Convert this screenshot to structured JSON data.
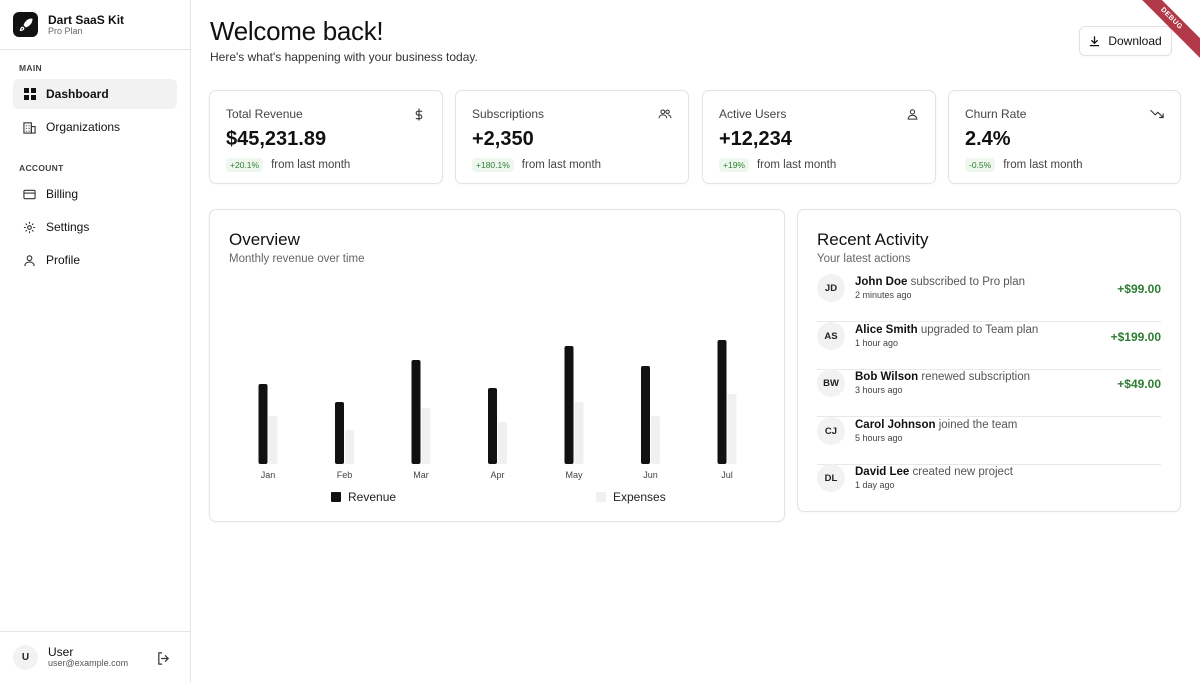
{
  "brand": {
    "name": "Dart SaaS Kit",
    "plan": "Pro Plan"
  },
  "sidebar": {
    "sections": [
      {
        "label": "MAIN",
        "items": [
          {
            "label": "Dashboard",
            "icon": "dashboard-icon",
            "active": true
          },
          {
            "label": "Organizations",
            "icon": "building-icon",
            "active": false
          }
        ]
      },
      {
        "label": "ACCOUNT",
        "items": [
          {
            "label": "Billing",
            "icon": "credit-card-icon",
            "active": false
          },
          {
            "label": "Settings",
            "icon": "gear-icon",
            "active": false
          },
          {
            "label": "Profile",
            "icon": "user-icon",
            "active": false
          }
        ]
      }
    ]
  },
  "user": {
    "initial": "U",
    "name": "User",
    "email": "user@example.com"
  },
  "header": {
    "title": "Welcome back!",
    "subtitle": "Here's what's happening with your business today.",
    "download_label": "Download"
  },
  "debug_banner": "DEBUG",
  "stats": [
    {
      "title": "Total Revenue",
      "value": "$45,231.89",
      "change": "+20.1%",
      "from": "from last month",
      "icon": "dollar-icon"
    },
    {
      "title": "Subscriptions",
      "value": "+2,350",
      "change": "+180.1%",
      "from": "from last month",
      "icon": "users-icon"
    },
    {
      "title": "Active Users",
      "value": "+12,234",
      "change": "+19%",
      "from": "from last month",
      "icon": "user-icon"
    },
    {
      "title": "Churn Rate",
      "value": "2.4%",
      "change": "-0.5%",
      "from": "from last month",
      "icon": "trending-down-icon"
    }
  ],
  "overview": {
    "title": "Overview",
    "subtitle": "Monthly revenue over time"
  },
  "chart_data": {
    "type": "bar",
    "categories": [
      "Jan",
      "Feb",
      "Mar",
      "Apr",
      "May",
      "Jun",
      "Jul"
    ],
    "series": [
      {
        "name": "Revenue",
        "values": [
          4000,
          3100,
          5200,
          3800,
          5900,
          4900,
          6200
        ],
        "color": "#111111"
      },
      {
        "name": "Expenses",
        "values": [
          2400,
          1700,
          2800,
          2100,
          3100,
          2400,
          3500
        ],
        "color": "#f0f0f0"
      }
    ],
    "ylim": [
      0,
      7000
    ],
    "grid": false,
    "legend": "bottom"
  },
  "activity": {
    "title": "Recent Activity",
    "subtitle": "Your latest actions",
    "items": [
      {
        "initials": "JD",
        "name": "John Doe",
        "action": "subscribed to Pro plan",
        "time": "2 minutes ago",
        "amount": "+$99.00"
      },
      {
        "initials": "AS",
        "name": "Alice Smith",
        "action": "upgraded to Team plan",
        "time": "1 hour ago",
        "amount": "+$199.00"
      },
      {
        "initials": "BW",
        "name": "Bob Wilson",
        "action": "renewed subscription",
        "time": "3 hours ago",
        "amount": "+$49.00"
      },
      {
        "initials": "CJ",
        "name": "Carol Johnson",
        "action": "joined the team",
        "time": "5 hours ago",
        "amount": ""
      },
      {
        "initials": "DL",
        "name": "David Lee",
        "action": "created new project",
        "time": "1 day ago",
        "amount": ""
      }
    ]
  },
  "colors": {
    "accent": "#111111",
    "positive": "#2f7d32",
    "positive_bg": "#eef7ee",
    "border": "#e3e3e3"
  }
}
